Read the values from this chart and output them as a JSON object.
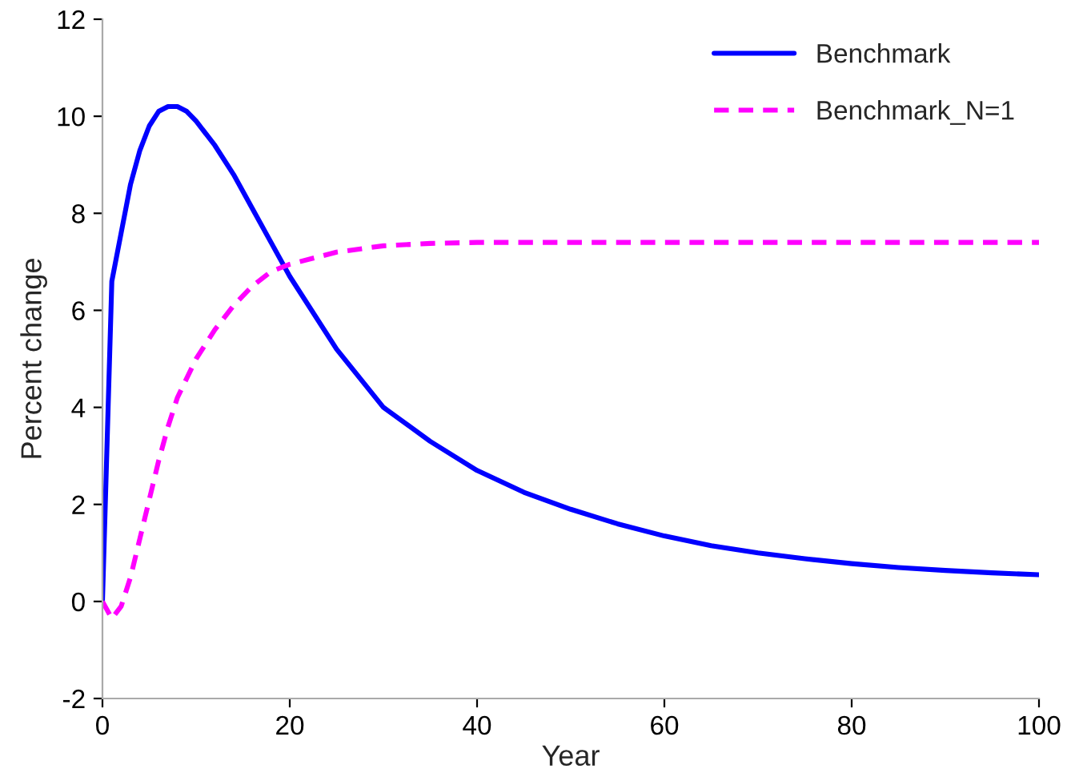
{
  "chart_data": {
    "type": "line",
    "xlabel": "Year",
    "ylabel": "Percent change",
    "xlim": [
      0,
      100
    ],
    "xticks": [
      0,
      20,
      40,
      60,
      80,
      100
    ],
    "ylim": [
      -2,
      12
    ],
    "yticks": [
      -2,
      0,
      2,
      4,
      6,
      8,
      10,
      12
    ],
    "grid": false,
    "legend": "top right",
    "marker": "none",
    "series": [
      {
        "name": "Benchmark",
        "color": "#0000ff",
        "line_style": "solid",
        "x": [
          0,
          1,
          2,
          3,
          4,
          5,
          6,
          7,
          8,
          9,
          10,
          12,
          14,
          16,
          18,
          20,
          25,
          30,
          35,
          40,
          45,
          50,
          55,
          60,
          65,
          70,
          75,
          80,
          85,
          90,
          95,
          100
        ],
        "values": [
          0,
          6.6,
          7.6,
          8.6,
          9.3,
          9.8,
          10.1,
          10.2,
          10.2,
          10.1,
          9.9,
          9.4,
          8.8,
          8.1,
          7.4,
          6.7,
          5.2,
          4.0,
          3.3,
          2.7,
          2.25,
          1.9,
          1.6,
          1.35,
          1.15,
          1.0,
          0.88,
          0.78,
          0.7,
          0.64,
          0.59,
          0.55
        ]
      },
      {
        "name": "Benchmark_N=1",
        "color": "#ff00ff",
        "line_style": "dashed",
        "x": [
          0,
          1,
          2,
          3,
          4,
          5,
          6,
          7,
          8,
          10,
          12,
          14,
          16,
          18,
          20,
          25,
          30,
          35,
          40,
          60,
          80,
          100
        ],
        "values": [
          0,
          -0.35,
          -0.1,
          0.5,
          1.3,
          2.1,
          2.9,
          3.6,
          4.2,
          5.0,
          5.6,
          6.1,
          6.5,
          6.8,
          6.95,
          7.2,
          7.33,
          7.38,
          7.4,
          7.4,
          7.4,
          7.4
        ]
      }
    ]
  }
}
